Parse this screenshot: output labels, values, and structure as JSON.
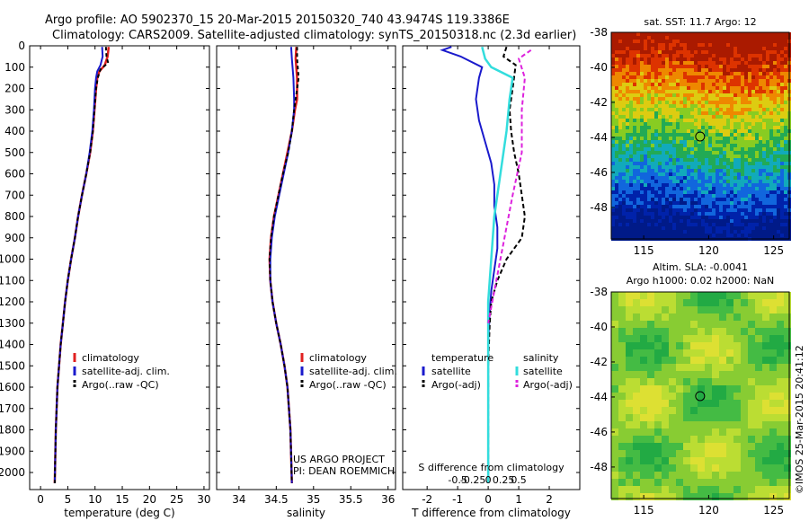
{
  "header": {
    "line1": "Argo profile: AO 5902370_15 20-Mar-2015 20150320_740 43.9474S 119.3386E",
    "line2": "Climatology: CARS2009. Satellite-adjusted climatology: synTS_20150318.nc (2.3d earlier)"
  },
  "colors": {
    "climatology": "#e02020",
    "satellite": "#1a1acc",
    "argo": "#000000",
    "salinity_satellite": "#33dddd",
    "salinity_argo": "#dd22dd"
  },
  "chart_data": [
    {
      "type": "line",
      "xlabel": "temperature (deg C)",
      "ylabel": "",
      "xlim": [
        -2,
        31
      ],
      "ylim": [
        2080,
        0
      ],
      "xticks": [
        "0",
        "5",
        "10",
        "15",
        "20",
        "25",
        "30"
      ],
      "yticks": [
        "0",
        "100",
        "200",
        "300",
        "400",
        "500",
        "600",
        "700",
        "800",
        "900",
        "1000",
        "1100",
        "1200",
        "1300",
        "1400",
        "1500",
        "1600",
        "1700",
        "1800",
        "1900",
        "2000"
      ],
      "legend": [
        "climatology",
        "satellite-adj. clim.",
        "Argo(..raw -QC)"
      ],
      "series": [
        {
          "name": "climatology",
          "x": [
            12.5,
            12.3,
            11.8,
            10.8,
            10.4,
            10.2,
            9.9,
            9.6,
            9.1,
            8.4,
            7.6,
            6.9,
            6.3,
            5.6,
            5.0,
            4.5,
            4.1,
            3.7,
            3.4,
            3.1,
            2.8,
            2.6
          ],
          "y": [
            5,
            50,
            90,
            120,
            150,
            200,
            300,
            400,
            500,
            600,
            700,
            800,
            900,
            1000,
            1100,
            1200,
            1300,
            1400,
            1500,
            1600,
            1800,
            2050
          ]
        },
        {
          "name": "satellite-adj. clim.",
          "x": [
            11.3,
            11.4,
            11.0,
            10.4,
            10.2,
            10.0,
            9.8,
            9.5,
            9.0,
            8.4,
            7.6,
            6.9,
            6.3,
            5.6,
            5.0,
            4.5,
            4.1,
            3.7,
            3.4,
            3.1,
            2.8,
            2.6
          ],
          "y": [
            5,
            50,
            90,
            120,
            150,
            200,
            300,
            400,
            500,
            600,
            700,
            800,
            900,
            1000,
            1100,
            1200,
            1300,
            1400,
            1500,
            1600,
            1800,
            2050
          ]
        },
        {
          "name": "Argo(..raw -QC)",
          "x": [
            12.0,
            12.1,
            12.4,
            11.0,
            10.5,
            10.2,
            9.9,
            9.6,
            9.1,
            8.4,
            7.6,
            6.9,
            6.3,
            5.6,
            5.0,
            4.5,
            4.1,
            3.7,
            3.4,
            3.1,
            2.8,
            2.6
          ],
          "y": [
            5,
            50,
            80,
            110,
            150,
            200,
            300,
            400,
            500,
            600,
            700,
            800,
            900,
            1000,
            1100,
            1200,
            1300,
            1400,
            1500,
            1600,
            1800,
            2050
          ]
        }
      ]
    },
    {
      "type": "line",
      "xlabel": "salinity",
      "xlim": [
        33.7,
        36.1
      ],
      "ylim": [
        2080,
        0
      ],
      "xticks": [
        "34",
        "34.5",
        "35",
        "35.5",
        "36"
      ],
      "legend": [
        "climatology",
        "satellite-adj. clim.",
        "Argo(..raw -QC)"
      ],
      "annotation": [
        "US ARGO PROJECT",
        "PI: DEAN ROEMMICH"
      ],
      "series": [
        {
          "name": "climatology",
          "x": [
            34.77,
            34.76,
            34.78,
            34.78,
            34.75,
            34.71,
            34.65,
            34.59,
            34.53,
            34.47,
            34.43,
            34.41,
            34.42,
            34.45,
            34.5,
            34.56,
            34.61,
            34.65,
            34.69,
            34.71
          ],
          "y": [
            5,
            60,
            150,
            250,
            300,
            400,
            500,
            600,
            700,
            800,
            900,
            1000,
            1100,
            1200,
            1300,
            1400,
            1500,
            1600,
            1800,
            2050
          ]
        },
        {
          "name": "satellite-adj. clim.",
          "x": [
            34.7,
            34.71,
            34.73,
            34.74,
            34.74,
            34.71,
            34.66,
            34.6,
            34.54,
            34.48,
            34.44,
            34.42,
            34.42,
            34.45,
            34.5,
            34.56,
            34.61,
            34.65,
            34.69,
            34.71
          ],
          "y": [
            5,
            60,
            150,
            250,
            300,
            400,
            500,
            600,
            700,
            800,
            900,
            1000,
            1100,
            1200,
            1300,
            1400,
            1500,
            1600,
            1800,
            2050
          ]
        },
        {
          "name": "Argo(..raw -QC)",
          "x": [
            34.78,
            34.78,
            34.8,
            34.76,
            34.74,
            34.71,
            34.66,
            34.59,
            34.53,
            34.47,
            34.43,
            34.41,
            34.42,
            34.45,
            34.5,
            34.56,
            34.61,
            34.65,
            34.69,
            34.71
          ],
          "y": [
            5,
            60,
            150,
            250,
            300,
            400,
            500,
            600,
            700,
            800,
            900,
            1000,
            1100,
            1200,
            1300,
            1400,
            1500,
            1600,
            1800,
            2050
          ]
        }
      ]
    },
    {
      "type": "line",
      "xlabel": "T difference from climatology",
      "xlabel_top": "S difference from climatology",
      "xlim": [
        -2.8,
        3.0
      ],
      "ylim": [
        2080,
        0
      ],
      "xticks": [
        "-2",
        "-1",
        "0",
        "1",
        "2"
      ],
      "xticks_top": [
        "-0.5",
        "-0.25",
        "0",
        "0.25",
        "0.5"
      ],
      "legend_temperature": [
        "temperature",
        "satellite",
        "Argo(-adj)"
      ],
      "legend_salinity": [
        "salinity",
        "satellite",
        "Argo(-adj)"
      ],
      "series": [
        {
          "name": "temperature satellite",
          "x": [
            -1.2,
            -1.5,
            -0.9,
            -0.2,
            -0.3,
            -0.4,
            -0.3,
            -0.1,
            0.1,
            0.2,
            0.2,
            0.3,
            0.3,
            0.2,
            0.1,
            0.05,
            0.0,
            0.0,
            0.0,
            0.0
          ],
          "y": [
            5,
            20,
            50,
            100,
            150,
            250,
            350,
            450,
            550,
            650,
            750,
            850,
            950,
            1050,
            1150,
            1250,
            1400,
            1600,
            1800,
            2050
          ]
        },
        {
          "name": "temperature Argo(-adj)",
          "x": [
            0.6,
            0.5,
            0.9,
            0.8,
            0.7,
            0.75,
            0.85,
            1.0,
            1.1,
            1.2,
            1.1,
            0.6,
            0.3,
            0.1,
            0.05,
            0.0,
            0.0
          ],
          "y": [
            5,
            50,
            90,
            200,
            300,
            400,
            500,
            600,
            700,
            800,
            900,
            1000,
            1100,
            1200,
            1300,
            1500,
            2050
          ]
        },
        {
          "name": "salinity satellite",
          "x": [
            -0.1,
            -0.05,
            0.05,
            0.4,
            0.35,
            0.3,
            0.25,
            0.2,
            0.1,
            0.05,
            0.0,
            0.0,
            0.0
          ],
          "y": [
            5,
            60,
            100,
            150,
            250,
            400,
            500,
            600,
            800,
            1000,
            1200,
            1500,
            2050
          ]
        },
        {
          "name": "salinity Argo(-adj)",
          "x": [
            0.7,
            0.5,
            0.6,
            0.55,
            0.55,
            0.4,
            0.2,
            0.0
          ],
          "y": [
            20,
            60,
            150,
            300,
            500,
            700,
            1000,
            1300
          ]
        }
      ]
    },
    {
      "type": "heatmap",
      "title": "sat. SST: 11.7 Argo: 12",
      "xlim": [
        112.5,
        126.2
      ],
      "ylim": [
        -49.8,
        -38
      ],
      "xticks": [
        "115",
        "120",
        "125"
      ],
      "yticks": [
        "-38",
        "-40",
        "-42",
        "-44",
        "-46",
        "-48"
      ],
      "marker": {
        "lon": 119.34,
        "lat": -43.95
      }
    },
    {
      "type": "heatmap",
      "title": "Altim. SLA: -0.0041",
      "subtitle": "Argo h1000: 0.02 h2000: NaN",
      "xlim": [
        112.5,
        126.2
      ],
      "ylim": [
        -49.8,
        -38
      ],
      "xticks": [
        "115",
        "120",
        "125"
      ],
      "yticks": [
        "-38",
        "-40",
        "-42",
        "-44",
        "-46",
        "-48"
      ],
      "marker": {
        "lon": 119.34,
        "lat": -43.95
      }
    }
  ],
  "footer_vertical": "©IMOS 25-Mar-2015 20:41:12"
}
